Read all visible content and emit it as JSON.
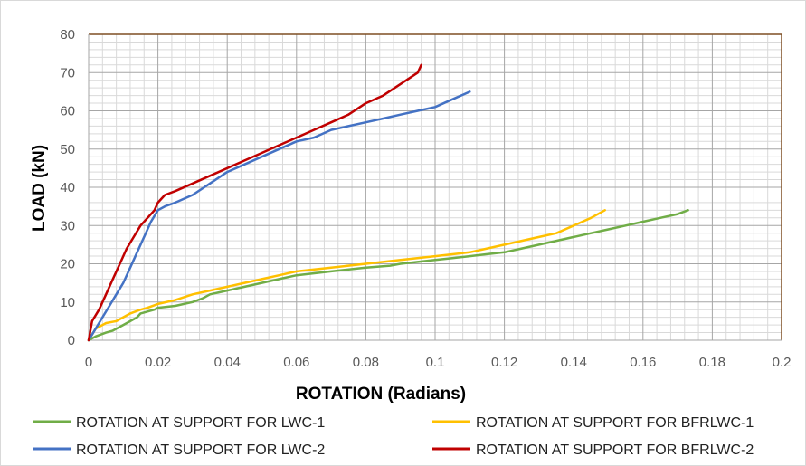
{
  "chart_data": {
    "type": "line",
    "title": "",
    "xlabel": "ROTATION (Radians)",
    "ylabel": "LOAD (kN)",
    "xlim": [
      0,
      0.2
    ],
    "ylim": [
      0,
      80
    ],
    "x_ticks": [
      0,
      0.02,
      0.04,
      0.06,
      0.08,
      0.1,
      0.12,
      0.14,
      0.16,
      0.18,
      0.2
    ],
    "x_tick_labels": [
      "0",
      "0.02",
      "0.04",
      "0.06",
      "0.08",
      "0.1",
      "0.12",
      "0.14",
      "0.16",
      "0.18",
      "0.2"
    ],
    "y_ticks": [
      0,
      10,
      20,
      30,
      40,
      50,
      60,
      70,
      80
    ],
    "y_tick_labels": [
      "0",
      "10",
      "20",
      "30",
      "40",
      "50",
      "60",
      "70",
      "80"
    ],
    "grid": true,
    "legend_position": "bottom",
    "series": [
      {
        "name": "ROTATION AT SUPPORT FOR LWC-1",
        "color": "#70ad47",
        "x": [
          0,
          0.002,
          0.005,
          0.007,
          0.008,
          0.01,
          0.012,
          0.014,
          0.015,
          0.017,
          0.019,
          0.02,
          0.025,
          0.03,
          0.033,
          0.035,
          0.04,
          0.045,
          0.05,
          0.055,
          0.06,
          0.07,
          0.08,
          0.087,
          0.09,
          0.095,
          0.1,
          0.105,
          0.11,
          0.115,
          0.12,
          0.125,
          0.13,
          0.135,
          0.14,
          0.145,
          0.15,
          0.155,
          0.16,
          0.165,
          0.17,
          0.173
        ],
        "y": [
          0,
          1,
          2,
          2.5,
          3,
          4,
          5,
          6,
          7,
          7.5,
          8,
          8.5,
          9,
          10,
          11,
          12,
          13,
          14,
          15,
          16,
          17,
          18,
          19,
          19.5,
          20,
          20.5,
          21,
          21.5,
          22,
          22.5,
          23,
          24,
          25,
          26,
          27,
          28,
          29,
          30,
          31,
          32,
          33,
          34
        ]
      },
      {
        "name": "ROTATION AT SUPPORT FOR BFRLWC-1",
        "color": "#ffc000",
        "x": [
          0,
          0.002,
          0.005,
          0.008,
          0.01,
          0.012,
          0.015,
          0.017,
          0.02,
          0.025,
          0.03,
          0.035,
          0.04,
          0.045,
          0.05,
          0.055,
          0.06,
          0.07,
          0.08,
          0.09,
          0.1,
          0.11,
          0.115,
          0.12,
          0.125,
          0.13,
          0.135,
          0.14,
          0.145,
          0.149
        ],
        "y": [
          0,
          3,
          4.5,
          5,
          6,
          7,
          8,
          8.5,
          9.5,
          10.5,
          12,
          13,
          14,
          15,
          16,
          17,
          18,
          19,
          20,
          21,
          22,
          23,
          24,
          25,
          26,
          27,
          28,
          30,
          32,
          34
        ]
      },
      {
        "name": "ROTATION AT SUPPORT FOR LWC-2",
        "color": "#4472c4",
        "x": [
          0,
          0.002,
          0.004,
          0.006,
          0.008,
          0.01,
          0.012,
          0.014,
          0.016,
          0.018,
          0.02,
          0.022,
          0.025,
          0.03,
          0.035,
          0.04,
          0.045,
          0.05,
          0.055,
          0.06,
          0.065,
          0.07,
          0.075,
          0.08,
          0.085,
          0.09,
          0.095,
          0.1,
          0.105,
          0.11
        ],
        "y": [
          0,
          3,
          6,
          9,
          12,
          15,
          19,
          23,
          27,
          31,
          34,
          35,
          36,
          38,
          41,
          44,
          46,
          48,
          50,
          52,
          53,
          55,
          56,
          57,
          58,
          59,
          60,
          61,
          63,
          65
        ]
      },
      {
        "name": "ROTATION AT SUPPORT FOR BFRLWC-2",
        "color": "#c00000",
        "x": [
          0,
          0.001,
          0.003,
          0.005,
          0.007,
          0.009,
          0.011,
          0.013,
          0.015,
          0.017,
          0.019,
          0.02,
          0.022,
          0.025,
          0.03,
          0.035,
          0.04,
          0.045,
          0.05,
          0.055,
          0.06,
          0.065,
          0.07,
          0.075,
          0.08,
          0.085,
          0.09,
          0.095,
          0.096
        ],
        "y": [
          0,
          5,
          8,
          12,
          16,
          20,
          24,
          27,
          30,
          32,
          34,
          36,
          38,
          39,
          41,
          43,
          45,
          47,
          49,
          51,
          53,
          55,
          57,
          59,
          62,
          64,
          67,
          70,
          72
        ]
      }
    ]
  }
}
